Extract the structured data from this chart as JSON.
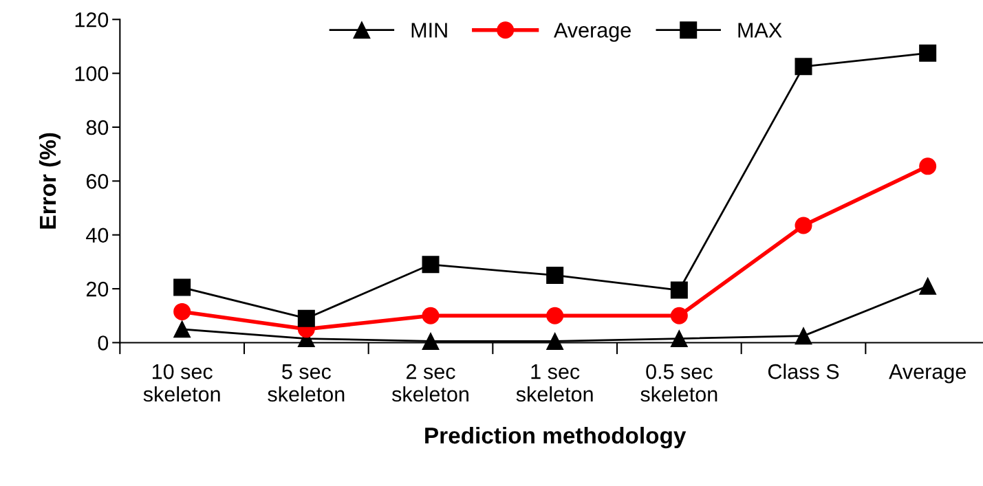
{
  "chart_data": {
    "type": "line",
    "xlabel": "Prediction methodology",
    "ylabel": "Error (%)",
    "categories": [
      "10 sec\nskeleton",
      "5 sec\nskeleton",
      "2 sec\nskeleton",
      "1 sec\nskeleton",
      "0.5 sec\nskeleton",
      "Class S",
      "Average"
    ],
    "series": [
      {
        "name": "MIN",
        "color": "#000000",
        "marker": "triangle",
        "values": [
          5,
          1.5,
          0.5,
          0.5,
          1.5,
          2.5,
          21
        ]
      },
      {
        "name": "Average",
        "color": "#ff0000",
        "marker": "circle",
        "values": [
          11.5,
          5,
          10,
          10,
          10,
          43.5,
          65.5
        ]
      },
      {
        "name": "MAX",
        "color": "#000000",
        "marker": "square",
        "values": [
          20.5,
          9,
          29,
          25,
          19.5,
          102.5,
          107.5
        ]
      }
    ],
    "ylim": [
      0,
      120
    ],
    "yticks": [
      0,
      20,
      40,
      60,
      80,
      100,
      120
    ],
    "grid": false,
    "legend": "top left",
    "line_style": "solid"
  }
}
